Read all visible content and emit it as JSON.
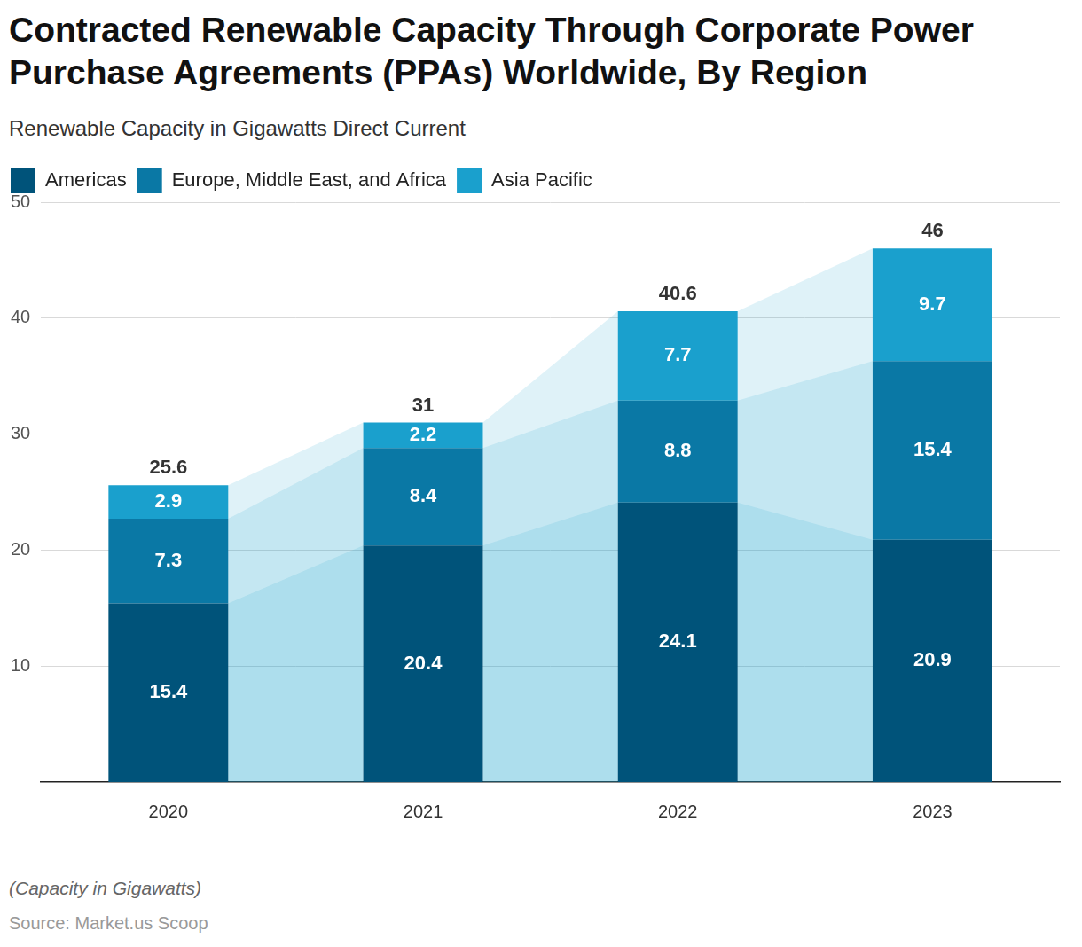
{
  "chart_data": {
    "type": "bar",
    "title": "Contracted Renewable Capacity Through Corporate Power Purchase Agreements (PPAs) Worldwide, By Region",
    "subtitle": "Renewable Capacity in Gigawatts Direct Current",
    "note": "(Capacity in Gigawatts)",
    "source": "Source: Market.us Scoop",
    "categories": [
      "2020",
      "2021",
      "2022",
      "2023"
    ],
    "series": [
      {
        "name": "Americas",
        "color": "#00537a",
        "values": [
          15.4,
          20.4,
          24.1,
          20.9
        ]
      },
      {
        "name": "Europe, Middle East, and Africa",
        "color": "#0a78a5",
        "values": [
          7.3,
          8.4,
          8.8,
          15.4
        ]
      },
      {
        "name": "Asia Pacific",
        "color": "#1aa0cd",
        "values": [
          2.9,
          2.2,
          7.7,
          9.7
        ]
      }
    ],
    "totals": [
      25.6,
      31,
      40.6,
      46
    ],
    "ylim": [
      0,
      50
    ],
    "yticks": [
      10,
      20,
      30,
      40,
      50
    ],
    "stacked": true,
    "data_labels": true,
    "grid": true,
    "legend": "top-left"
  }
}
